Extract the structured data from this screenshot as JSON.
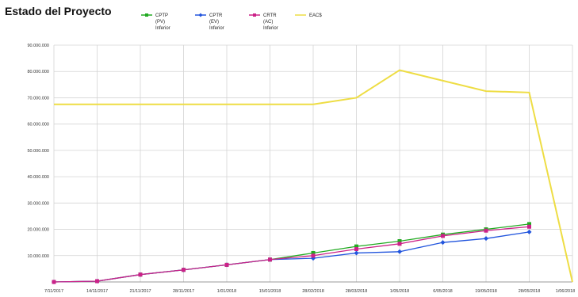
{
  "chart_data": {
    "type": "line",
    "title": "Estado del Proyecto",
    "xlabel": "",
    "ylabel": "",
    "ylim": [
      0,
      90000000
    ],
    "grid": true,
    "legend_position": "top",
    "categories": [
      "7/11/2017",
      "14/11/2017",
      "21/11/2017",
      "28/11/2017",
      "1/01/2018",
      "15/01/2018",
      "28/02/2018",
      "28/03/2018",
      "1/05/2018",
      "6/05/2018",
      "19/05/2018",
      "28/05/2018",
      "1/06/2018"
    ],
    "y_ticks": [
      "",
      "10.000.000",
      "20.000.000",
      "30.000.000",
      "40.000.000",
      "50.000.000",
      "60.000.000",
      "70.000.000",
      "80.000.000",
      "90.000.000"
    ],
    "series": [
      {
        "name": "CPTP (PV) Inferior",
        "legend_lines": [
          "CPTP",
          "(PV)",
          "Inferior"
        ],
        "color": "#22aa22",
        "marker": "square",
        "values": [
          0,
          300000,
          2800000,
          4600000,
          6500000,
          8500000,
          11000000,
          13500000,
          15500000,
          18000000,
          20000000,
          22000000,
          null
        ]
      },
      {
        "name": "CPTR (EV) Inferior",
        "legend_lines": [
          "CPTR",
          "(EV)",
          "Inferior"
        ],
        "color": "#2255dd",
        "marker": "diamond",
        "values": [
          0,
          300000,
          2800000,
          4600000,
          6500000,
          8500000,
          9000000,
          11000000,
          11500000,
          15000000,
          16500000,
          19000000,
          null
        ]
      },
      {
        "name": "CRTR (AC) Inferior",
        "legend_lines": [
          "CRTR",
          "(AC)",
          "Inferior"
        ],
        "color": "#cc2288",
        "marker": "square",
        "values": [
          0,
          300000,
          2800000,
          4600000,
          6500000,
          8500000,
          10000000,
          12500000,
          14500000,
          17500000,
          19500000,
          21000000,
          null
        ]
      },
      {
        "name": "EAC$",
        "legend_lines": [
          "EAC$"
        ],
        "color": "#eedd44",
        "marker": "none",
        "values": [
          67500000,
          67500000,
          67500000,
          67500000,
          67500000,
          67500000,
          67500000,
          70000000,
          80500000,
          76500000,
          72500000,
          72000000,
          0
        ]
      }
    ]
  }
}
